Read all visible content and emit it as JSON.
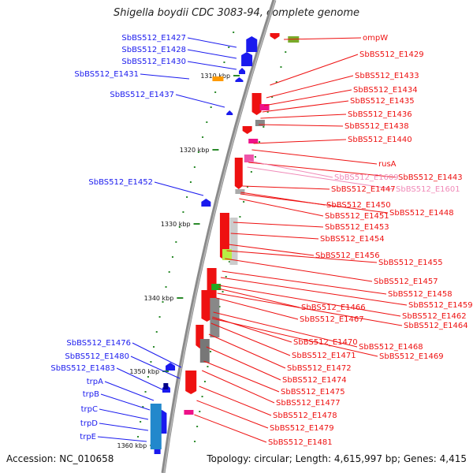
{
  "title": "Shigella boydii CDC 3083-94, complete genome",
  "footer": {
    "accession": "Accession: NC_010658",
    "summary": "Topology: circular; Length: 4,615,997 bp; Genes: 4,415"
  },
  "ticks": [
    "1310 kbp",
    "1320 kbp",
    "1330 kbp",
    "1340 kbp",
    "1350 kbp",
    "1360 kbp"
  ],
  "labels_left": [
    "SbBS512_E1427",
    "SbBS512_E1428",
    "SbBS512_E1430",
    "SbBS512_E1431",
    "SbBS512_E1437",
    "SbBS512_E1452",
    "SbBS512_E1476",
    "SbBS512_E1480",
    "SbBS512_E1483",
    "trpA",
    "trpB",
    "trpC",
    "trpD",
    "trpE"
  ],
  "labels_right": [
    "ompW",
    "SbBS512_E1429",
    "SbBS512_E1433",
    "SbBS512_E1434",
    "SbBS512_E1435",
    "SbBS512_E1436",
    "SbBS512_E1438",
    "SbBS512_E1440",
    "rusA",
    "SbBS512_E1443",
    "SbBS512_E1447",
    "SbBS512_E1450",
    "SbBS512_E1451",
    "SbBS512_E1448",
    "SbBS512_E1453",
    "SbBS512_E1454",
    "SbBS512_E1456",
    "SbBS512_E1455",
    "SbBS512_E1457",
    "SbBS512_E1458",
    "SbBS512_E1459",
    "SbBS512_E1466",
    "SbBS512_E1462",
    "SbBS512_E1467",
    "SbBS512_E1464",
    "SbBS512_E1470",
    "SbBS512_E1468",
    "SbBS512_E1471",
    "SbBS512_E1469",
    "SbBS512_E1472",
    "SbBS512_E1474",
    "SbBS512_E1475",
    "SbBS512_E1477",
    "SbBS512_E1478",
    "SbBS512_E1479",
    "SbBS512_E1481"
  ],
  "labels_faded": [
    "SbBS512_E1609",
    "SbBS512_E1601"
  ],
  "colors": {
    "forward": "#1a1aee",
    "reverse": "#ee1111",
    "faded": "#f08ab8",
    "backbone": "#8a8a8a",
    "tick": "#2a8a2a"
  }
}
